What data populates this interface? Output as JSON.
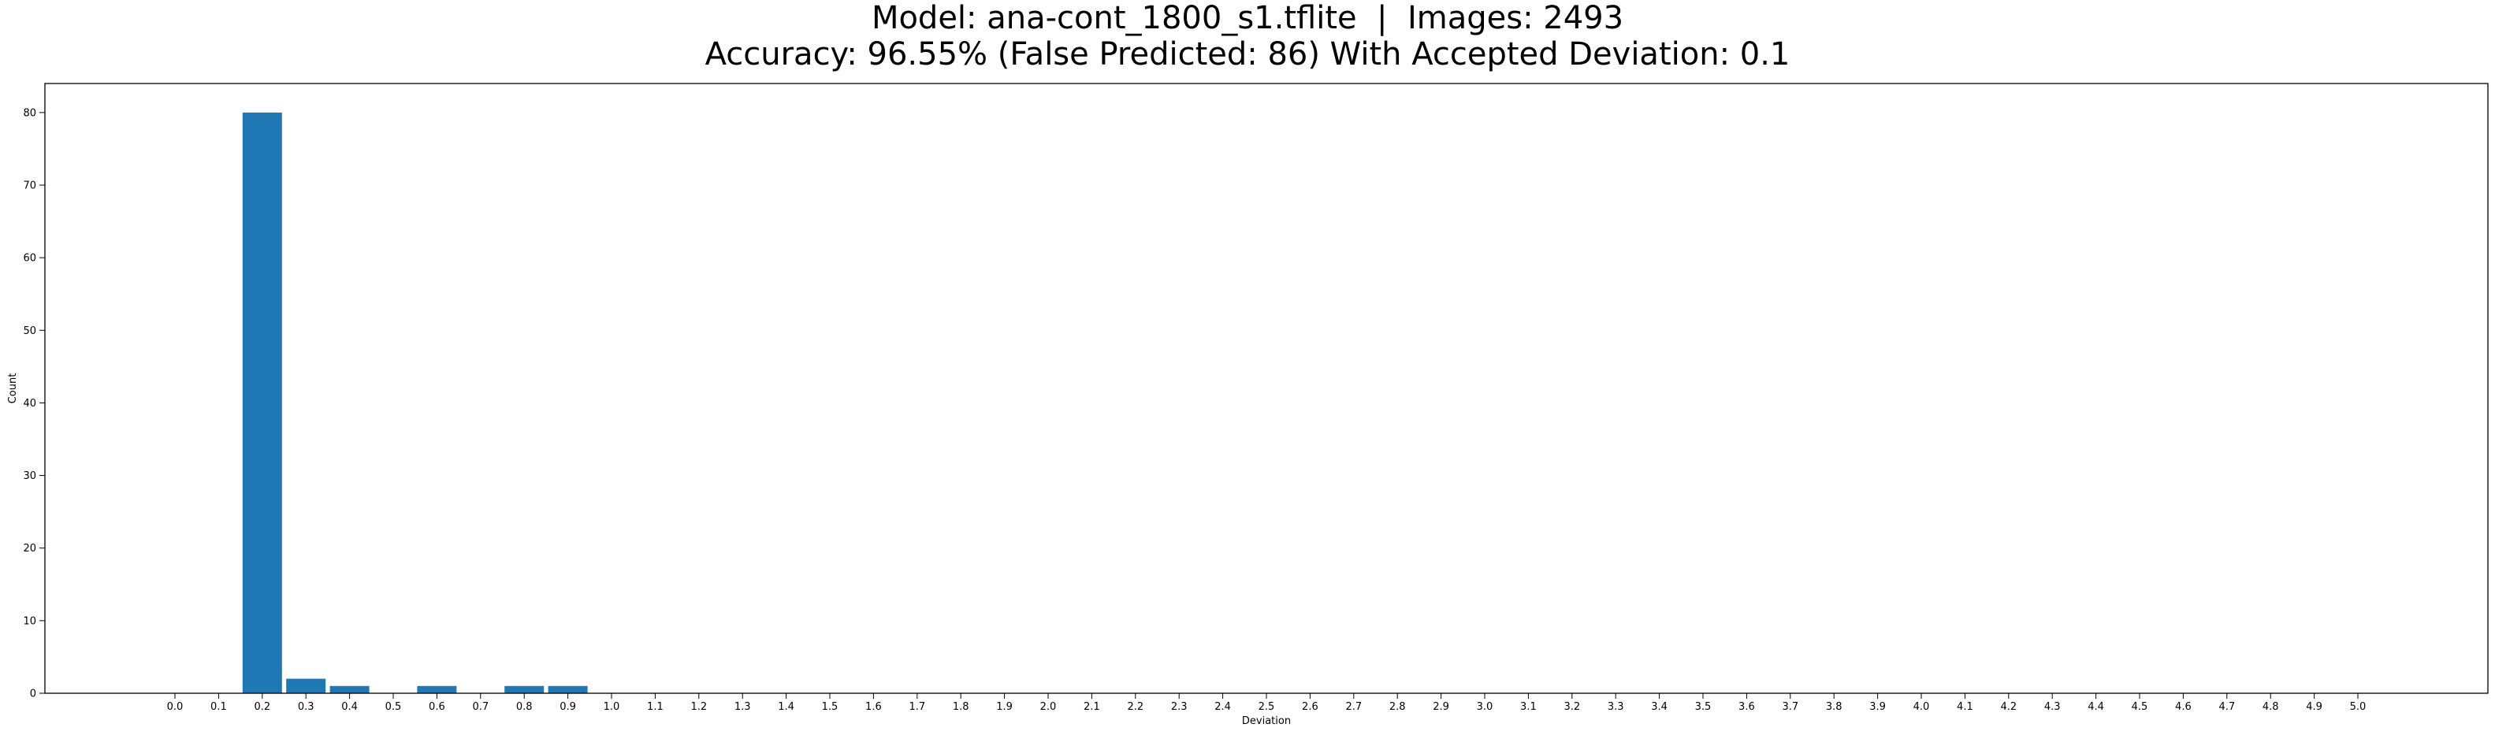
{
  "chart_data": {
    "type": "bar",
    "title_line1": "Model: ana-cont_1800_s1.tflite  |  Images: 2493",
    "title_line2": "Accuracy: 96.55% (False Predicted: 86) With Accepted Deviation: 0.1",
    "xlabel": "Deviation",
    "ylabel": "Count",
    "ylim": [
      0,
      84
    ],
    "yticks": [
      0,
      10,
      20,
      30,
      40,
      50,
      60,
      70,
      80
    ],
    "categories": [
      "0.0",
      "0.1",
      "0.2",
      "0.3",
      "0.4",
      "0.5",
      "0.6",
      "0.7",
      "0.8",
      "0.9",
      "1.0",
      "1.1",
      "1.2",
      "1.3",
      "1.4",
      "1.5",
      "1.6",
      "1.7",
      "1.8",
      "1.9",
      "2.0",
      "2.1",
      "2.2",
      "2.3",
      "2.4",
      "2.5",
      "2.6",
      "2.7",
      "2.8",
      "2.9",
      "3.0",
      "3.1",
      "3.2",
      "3.3",
      "3.4",
      "3.5",
      "3.6",
      "3.7",
      "3.8",
      "3.9",
      "4.0",
      "4.1",
      "4.2",
      "4.3",
      "4.4",
      "4.5",
      "4.6",
      "4.7",
      "4.8",
      "4.9",
      "5.0"
    ],
    "values": [
      0,
      0,
      80,
      2,
      1,
      0,
      1,
      0,
      1,
      1,
      0,
      0,
      0,
      0,
      0,
      0,
      0,
      0,
      0,
      0,
      0,
      0,
      0,
      0,
      0,
      0,
      0,
      0,
      0,
      0,
      0,
      0,
      0,
      0,
      0,
      0,
      0,
      0,
      0,
      0,
      0,
      0,
      0,
      0,
      0,
      0,
      0,
      0,
      0,
      0,
      0
    ],
    "bar_color": "#1f77b4",
    "grid": false,
    "legend": false
  }
}
